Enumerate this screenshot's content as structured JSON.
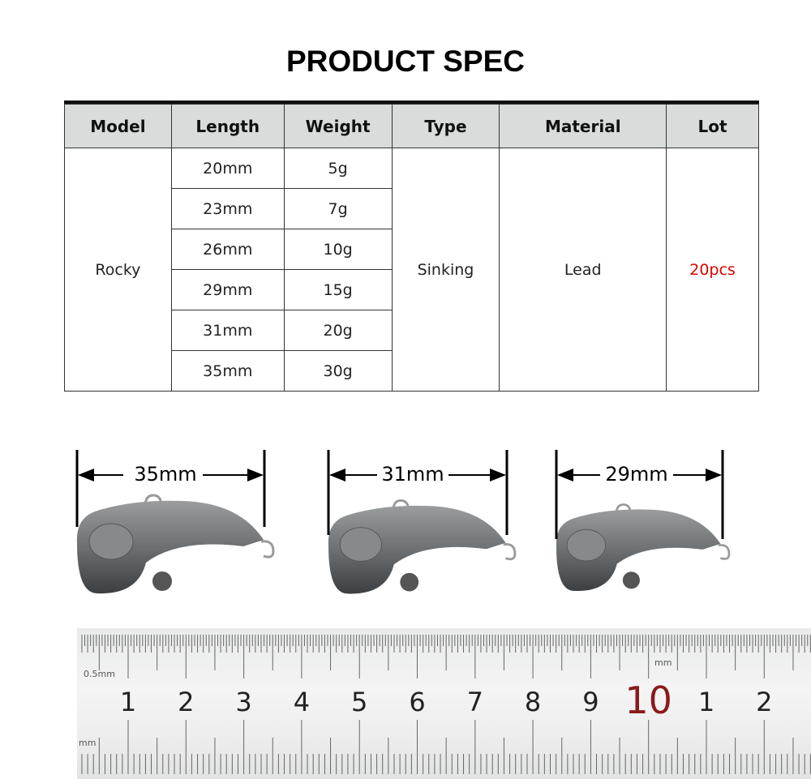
{
  "title": "PRODUCT SPEC",
  "table": {
    "headers": [
      "Model",
      "Length",
      "Weight",
      "Type",
      "Material",
      "Lot"
    ],
    "model": "Rocky",
    "rows": [
      {
        "length": "20mm",
        "weight": "5g"
      },
      {
        "length": "23mm",
        "weight": "7g"
      },
      {
        "length": "26mm",
        "weight": "10g"
      },
      {
        "length": "29mm",
        "weight": "15g"
      },
      {
        "length": "31mm",
        "weight": "20g"
      },
      {
        "length": "35mm",
        "weight": "30g"
      }
    ],
    "type": "Sinking",
    "material": "Lead",
    "lot": "20pcs",
    "lot_color": "#e00000"
  },
  "lures": [
    {
      "label": "35mm"
    },
    {
      "label": "31mm"
    },
    {
      "label": "29mm"
    }
  ],
  "ruler": {
    "top_label": "0.5mm",
    "mm_label": "mm",
    "bottom_label": "mm",
    "numbers": [
      "1",
      "2",
      "3",
      "4",
      "5",
      "6",
      "7",
      "8",
      "9",
      "10",
      "1",
      "2"
    ]
  }
}
